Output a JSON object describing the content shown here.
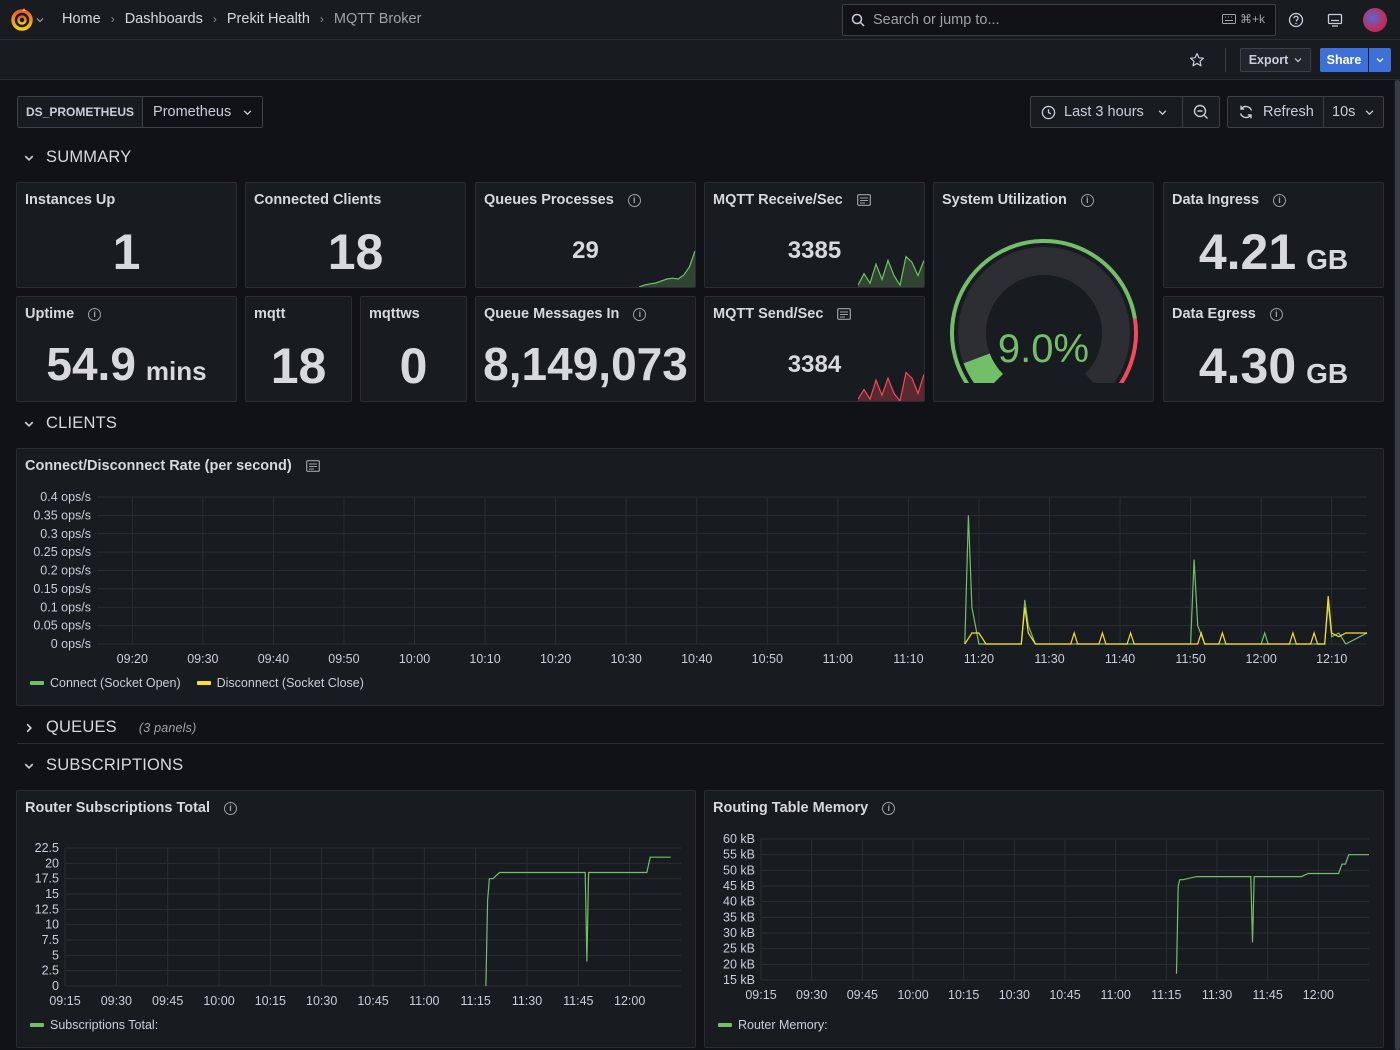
{
  "nav": {
    "breadcrumbs": [
      "Home",
      "Dashboards",
      "Prekit Health",
      "MQTT Broker"
    ],
    "search_placeholder": "Search or jump to...",
    "search_shortcut": "⌘+k"
  },
  "toolbar": {
    "export_label": "Export",
    "share_label": "Share"
  },
  "variables": {
    "ds_label": "DS_PROMETHEUS",
    "ds_value": "Prometheus"
  },
  "time": {
    "range_label": "Last 3 hours",
    "refresh_label": "Refresh",
    "interval": "10s"
  },
  "rows": {
    "summary": "SUMMARY",
    "clients": "CLIENTS",
    "queues": "QUEUES",
    "queues_sub": "(3 panels)",
    "subscriptions": "SUBSCRIPTIONS"
  },
  "summary": {
    "instances_up": {
      "title": "Instances Up",
      "value": "1"
    },
    "connected_clients": {
      "title": "Connected Clients",
      "value": "18"
    },
    "queues_processes": {
      "title": "Queues Processes",
      "value": "29",
      "spark": [
        0.0,
        0.05,
        0.08,
        0.1,
        0.15,
        0.2,
        0.22,
        0.2,
        0.3,
        0.5,
        0.9
      ]
    },
    "mqtt_receive": {
      "title": "MQTT Receive/Sec",
      "value": "3385",
      "spark": [
        0.05,
        0.35,
        0.1,
        0.6,
        0.2,
        0.7,
        0.3,
        0.05,
        0.8,
        0.65,
        0.3,
        0.7
      ]
    },
    "system_util": {
      "title": "System Utilization",
      "value": "9.0%",
      "fraction": 0.09,
      "color": "#73bf69"
    },
    "data_ingress": {
      "title": "Data Ingress",
      "value": "4.21",
      "unit": "GB"
    },
    "uptime": {
      "title": "Uptime",
      "value": "54.9",
      "unit": "mins"
    },
    "mqtt": {
      "title": "mqtt",
      "value": "18"
    },
    "mqttws": {
      "title": "mqttws",
      "value": "0"
    },
    "queue_messages_in": {
      "title": "Queue Messages In",
      "value": "8,149,073"
    },
    "mqtt_send": {
      "title": "MQTT Send/Sec",
      "value": "3384",
      "spark": [
        0.05,
        0.3,
        0.05,
        0.55,
        0.15,
        0.6,
        0.2,
        0.0,
        0.75,
        0.6,
        0.2,
        0.7
      ]
    },
    "data_egress": {
      "title": "Data Egress",
      "value": "4.30",
      "unit": "GB"
    }
  },
  "chart_data": [
    {
      "type": "line",
      "title": "Connect/Disconnect Rate (per second)",
      "y_ticks": [
        "0.4 ops/s",
        "0.35 ops/s",
        "0.3 ops/s",
        "0.25 ops/s",
        "0.2 ops/s",
        "0.15 ops/s",
        "0.1 ops/s",
        "0.05 ops/s",
        "0 ops/s"
      ],
      "x_ticks": [
        "09:20",
        "09:30",
        "09:40",
        "09:50",
        "10:00",
        "10:10",
        "10:20",
        "10:30",
        "10:40",
        "10:50",
        "11:00",
        "11:10",
        "11:20",
        "11:30",
        "11:40",
        "11:50",
        "12:00",
        "12:10"
      ],
      "ylim": [
        0,
        0.4
      ],
      "xlim": [
        "09:15",
        "12:15"
      ],
      "series": [
        {
          "name": "Connect (Socket Open)",
          "color": "#73bf69",
          "points": [
            [
              "11:18",
              0
            ],
            [
              "11:18.5",
              0.35
            ],
            [
              "11:19",
              0.1
            ],
            [
              "11:20",
              0
            ],
            [
              "11:26",
              0
            ],
            [
              "11:26.5",
              0.12
            ],
            [
              "11:27",
              0.05
            ],
            [
              "11:28",
              0
            ],
            [
              "11:50",
              0
            ],
            [
              "11:50.5",
              0.23
            ],
            [
              "11:51",
              0.05
            ],
            [
              "11:52",
              0
            ],
            [
              "12:00",
              0
            ],
            [
              "12:00.5",
              0.03
            ],
            [
              "12:01",
              0
            ],
            [
              "12:09",
              0
            ],
            [
              "12:09.5",
              0.11
            ],
            [
              "12:10",
              0.02
            ],
            [
              "12:11",
              0.03
            ],
            [
              "12:12",
              0
            ],
            [
              "12:15",
              0.03
            ]
          ]
        },
        {
          "name": "Disconnect (Socket Close)",
          "color": "#fade2a",
          "points": [
            [
              "11:18",
              0
            ],
            [
              "11:19",
              0.03
            ],
            [
              "11:20",
              0.03
            ],
            [
              "11:21",
              0
            ],
            [
              "11:26",
              0
            ],
            [
              "11:26.5",
              0.1
            ],
            [
              "11:27",
              0.03
            ],
            [
              "11:28",
              0
            ],
            [
              "11:33",
              0
            ],
            [
              "11:33.5",
              0.03
            ],
            [
              "11:34",
              0
            ],
            [
              "11:37",
              0
            ],
            [
              "11:37.5",
              0.03
            ],
            [
              "11:38",
              0
            ],
            [
              "11:41",
              0
            ],
            [
              "11:41.5",
              0.03
            ],
            [
              "11:42",
              0
            ],
            [
              "11:51",
              0
            ],
            [
              "11:51.5",
              0.03
            ],
            [
              "11:52",
              0
            ],
            [
              "11:54",
              0
            ],
            [
              "11:54.5",
              0.03
            ],
            [
              "11:55",
              0
            ],
            [
              "12:04",
              0
            ],
            [
              "12:04.5",
              0.03
            ],
            [
              "12:05",
              0
            ],
            [
              "12:07",
              0
            ],
            [
              "12:07.5",
              0.03
            ],
            [
              "12:08",
              0
            ],
            [
              "12:09",
              0
            ],
            [
              "12:09.5",
              0.13
            ],
            [
              "12:10",
              0.03
            ],
            [
              "12:11",
              0.02
            ],
            [
              "12:12",
              0.03
            ],
            [
              "12:15",
              0.03
            ]
          ]
        }
      ]
    },
    {
      "type": "line",
      "title": "Router Subscriptions Total",
      "y_ticks": [
        "22.5",
        "20",
        "17.5",
        "15",
        "12.5",
        "10",
        "7.5",
        "5",
        "2.5",
        "0"
      ],
      "x_ticks": [
        "09:15",
        "09:30",
        "09:45",
        "10:00",
        "10:15",
        "10:30",
        "10:45",
        "11:00",
        "11:15",
        "11:30",
        "11:45",
        "12:00"
      ],
      "ylim": [
        0,
        22.5
      ],
      "xlim": [
        "09:15",
        "12:15"
      ],
      "series": [
        {
          "name": "Subscriptions Total:",
          "color": "#73bf69",
          "points": [
            [
              "11:18",
              0
            ],
            [
              "11:18.5",
              14
            ],
            [
              "11:19",
              17.5
            ],
            [
              "11:20",
              17.5
            ],
            [
              "11:22",
              18.5
            ],
            [
              "11:47",
              18.5
            ],
            [
              "11:47.5",
              4
            ],
            [
              "11:48",
              18.5
            ],
            [
              "12:05",
              18.5
            ],
            [
              "12:06",
              21
            ],
            [
              "12:12",
              21
            ]
          ]
        }
      ]
    },
    {
      "type": "line",
      "title": "Routing Table Memory",
      "y_ticks": [
        "60 kB",
        "55 kB",
        "50 kB",
        "45 kB",
        "40 kB",
        "35 kB",
        "30 kB",
        "25 kB",
        "20 kB",
        "15 kB"
      ],
      "x_ticks": [
        "09:15",
        "09:30",
        "09:45",
        "10:00",
        "10:15",
        "10:30",
        "10:45",
        "11:00",
        "11:15",
        "11:30",
        "11:45",
        "12:00"
      ],
      "ylim": [
        15,
        60
      ],
      "xlim": [
        "09:15",
        "12:15"
      ],
      "series": [
        {
          "name": "Router Memory:",
          "color": "#73bf69",
          "points": [
            [
              "11:18",
              17
            ],
            [
              "11:18.5",
              45
            ],
            [
              "11:19",
              47
            ],
            [
              "11:20",
              47
            ],
            [
              "11:24",
              48
            ],
            [
              "11:40",
              48
            ],
            [
              "11:40.5",
              27
            ],
            [
              "11:41",
              48
            ],
            [
              "11:50",
              48
            ],
            [
              "11:55",
              48
            ],
            [
              "11:57",
              49
            ],
            [
              "12:06",
              49
            ],
            [
              "12:07",
              52
            ],
            [
              "12:08",
              52
            ],
            [
              "12:09",
              55
            ],
            [
              "12:15",
              55
            ]
          ]
        }
      ]
    }
  ]
}
